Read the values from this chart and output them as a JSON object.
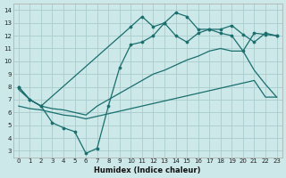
{
  "xlabel": "Humidex (Indice chaleur)",
  "bg_color": "#cce8e8",
  "line_color": "#1a6e6e",
  "grid_color": "#aacccc",
  "xlim": [
    -0.5,
    23.5
  ],
  "ylim": [
    2.5,
    14.5
  ],
  "xticks": [
    0,
    1,
    2,
    3,
    4,
    5,
    6,
    7,
    8,
    9,
    10,
    11,
    12,
    13,
    14,
    15,
    16,
    17,
    18,
    19,
    20,
    21,
    22,
    23
  ],
  "yticks": [
    3,
    4,
    5,
    6,
    7,
    8,
    9,
    10,
    11,
    12,
    13,
    14
  ],
  "curve1_x": [
    0,
    1,
    2,
    10,
    11,
    12,
    13,
    14,
    15,
    16,
    17,
    18,
    19,
    20,
    21,
    22,
    23
  ],
  "curve1_y": [
    8.0,
    7.0,
    6.5,
    12.7,
    13.5,
    12.7,
    13.0,
    13.8,
    13.5,
    12.5,
    12.5,
    12.5,
    12.8,
    12.1,
    11.5,
    12.2,
    12.0
  ],
  "curve2_x": [
    0,
    1,
    2,
    3,
    4,
    5,
    6,
    7,
    8,
    9,
    10,
    11,
    12,
    13,
    14,
    15,
    16,
    17,
    18,
    19,
    20,
    21,
    22,
    23
  ],
  "curve2_y": [
    8.0,
    7.0,
    6.5,
    5.2,
    4.8,
    4.5,
    2.8,
    3.2,
    6.5,
    9.5,
    11.3,
    11.5,
    12.0,
    13.0,
    12.0,
    11.5,
    12.2,
    12.5,
    12.2,
    12.0,
    10.8,
    12.2,
    12.1,
    12.0
  ],
  "curve3_x": [
    0,
    1,
    2,
    3,
    4,
    5,
    6,
    7,
    8,
    9,
    10,
    11,
    12,
    13,
    14,
    15,
    16,
    17,
    18,
    19,
    20,
    21,
    22,
    23
  ],
  "curve3_y": [
    7.8,
    7.0,
    6.5,
    6.3,
    6.2,
    6.0,
    5.8,
    6.5,
    7.0,
    7.5,
    8.0,
    8.5,
    9.0,
    9.3,
    9.7,
    10.1,
    10.4,
    10.8,
    11.0,
    10.8,
    10.8,
    9.3,
    8.2,
    7.2
  ],
  "curve4_x": [
    0,
    1,
    2,
    3,
    4,
    5,
    6,
    7,
    8,
    9,
    10,
    11,
    12,
    13,
    14,
    15,
    16,
    17,
    18,
    19,
    20,
    21,
    22,
    23
  ],
  "curve4_y": [
    6.5,
    6.3,
    6.2,
    6.0,
    5.8,
    5.7,
    5.5,
    5.7,
    5.9,
    6.1,
    6.3,
    6.5,
    6.7,
    6.9,
    7.1,
    7.3,
    7.5,
    7.7,
    7.9,
    8.1,
    8.3,
    8.5,
    7.2,
    7.2
  ]
}
